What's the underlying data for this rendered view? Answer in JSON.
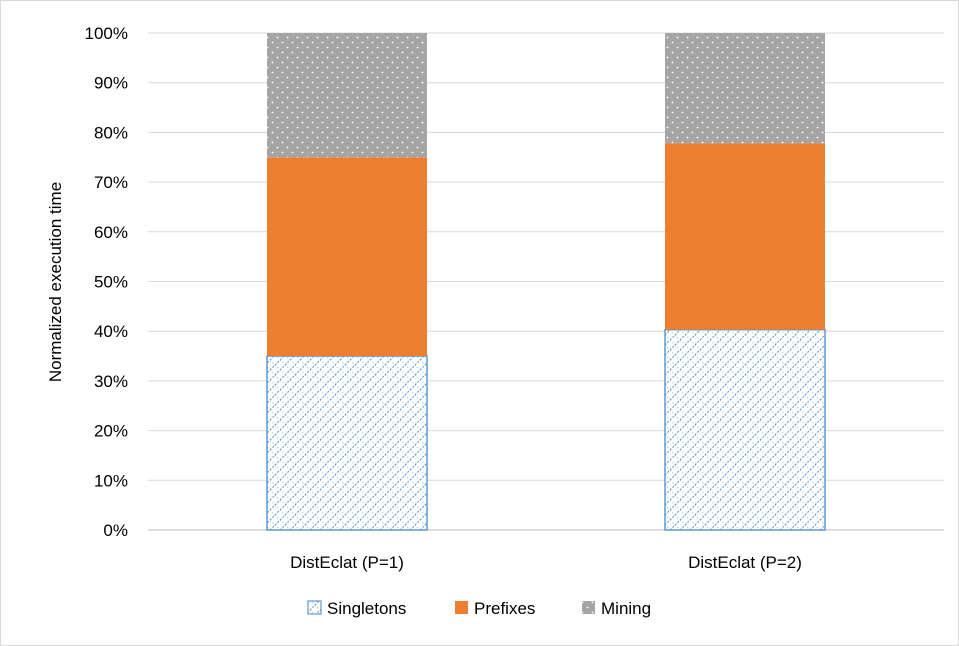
{
  "chart_data": {
    "type": "bar",
    "stacked": true,
    "normalized": true,
    "title": "",
    "xlabel": "",
    "ylabel": "Normalized execution time",
    "ylim": [
      0,
      100
    ],
    "yticks": [
      "0%",
      "10%",
      "20%",
      "30%",
      "40%",
      "50%",
      "60%",
      "70%",
      "80%",
      "90%",
      "100%"
    ],
    "grid": true,
    "legend_position": "bottom",
    "categories": [
      "DistEclat (P=1)",
      "DistEclat (P=2)"
    ],
    "series": [
      {
        "name": "Singletons",
        "values": [
          35,
          40.3
        ],
        "color": "#5B9BD5",
        "pattern": "diagonal-crosshatch"
      },
      {
        "name": "Prefixes",
        "values": [
          40,
          37.5
        ],
        "color": "#ED7D31",
        "pattern": "solid"
      },
      {
        "name": "Mining",
        "values": [
          25,
          22.2
        ],
        "color": "#A5A5A5",
        "pattern": "dots"
      }
    ]
  }
}
